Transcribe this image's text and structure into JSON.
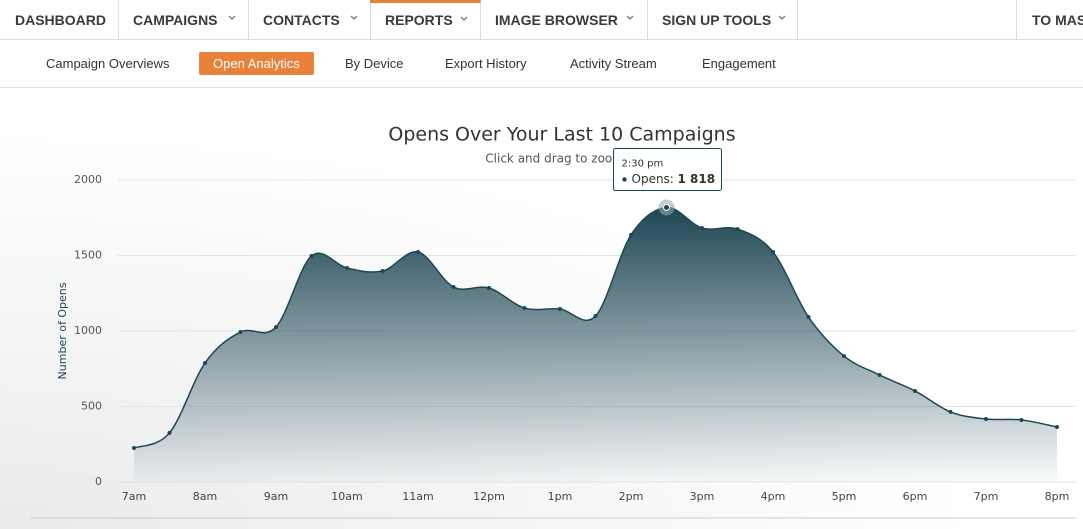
{
  "nav": {
    "tabs": [
      "DASHBOARD",
      "CAMPAIGNS",
      "CONTACTS",
      "REPORTS",
      "IMAGE BROWSER",
      "SIGN UP TOOLS",
      "TO MAS"
    ],
    "subnav": [
      "Campaign Overviews",
      "Open Analytics",
      "By Device",
      "Export History",
      "Activity Stream",
      "Engagement"
    ]
  },
  "chart_data": {
    "type": "area",
    "title": "Opens Over Your Last 10 Campaigns",
    "subtitle": "Click and drag to zoom in",
    "y_label": "Number of Opens",
    "categories": [
      "7am",
      null,
      "8am",
      null,
      "9am",
      null,
      "10am",
      null,
      "11am",
      null,
      "12pm",
      null,
      "1pm",
      null,
      "2pm",
      null,
      "3pm",
      null,
      "4pm",
      null,
      "5pm",
      null,
      "6pm",
      null,
      "7pm",
      null,
      "8pm"
    ],
    "values": [
      225,
      325,
      788,
      993,
      1026,
      1497,
      1417,
      1397,
      1523,
      1291,
      1285,
      1152,
      1146,
      1099,
      1636,
      1818,
      1682,
      1675,
      1523,
      1093,
      834,
      709,
      603,
      464,
      417,
      411,
      364
    ],
    "color": "#1e4654",
    "ylim": [
      0,
      2000
    ],
    "yticks": [
      0,
      500,
      1000,
      1500,
      2000
    ],
    "grid": true,
    "tooltip": {
      "time": "2:30 pm",
      "label": "Opens:",
      "value": 1818,
      "value_label": "1 818"
    }
  }
}
